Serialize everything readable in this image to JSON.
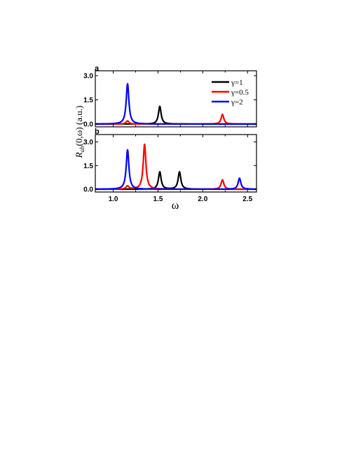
{
  "colors": {
    "gamma1": "#000000",
    "gamma05": "#ff0000",
    "gamma2": "#0000ff",
    "axis": "#000000"
  },
  "chart_data": [
    {
      "panel": "a",
      "type": "line",
      "xlim": [
        0.8,
        2.6
      ],
      "ylim": [
        -0.05,
        3.3
      ],
      "yticks": [
        0.0,
        1.5,
        3.0
      ],
      "ytick_labels": [
        "0.0",
        "1.5",
        "3.0"
      ],
      "legend": "top-right",
      "series": [
        {
          "name": "γ=1",
          "color": "#000000",
          "peaks": [
            {
              "x": 1.52,
              "height": 1.1
            }
          ]
        },
        {
          "name": "γ=0.5",
          "color": "#ff0000",
          "peaks": [
            {
              "x": 1.16,
              "height": 0.2
            },
            {
              "x": 2.22,
              "height": 0.6
            }
          ]
        },
        {
          "name": "γ=2",
          "color": "#0000ff",
          "peaks": [
            {
              "x": 1.16,
              "height": 2.5
            }
          ]
        }
      ]
    },
    {
      "panel": "b",
      "type": "line",
      "xlim": [
        0.8,
        2.6
      ],
      "ylim": [
        -0.05,
        3.3
      ],
      "yticks": [
        0.0,
        1.5,
        3.0
      ],
      "ytick_labels": [
        "0.0",
        "1.5",
        "3.0"
      ],
      "xticks": [
        1.0,
        1.5,
        2.0,
        2.5
      ],
      "xtick_labels": [
        "1.0",
        "1.5",
        "2.0",
        "2.5"
      ],
      "series": [
        {
          "name": "γ=1",
          "color": "#000000",
          "peaks": [
            {
              "x": 1.52,
              "height": 1.1
            },
            {
              "x": 1.74,
              "height": 1.1
            }
          ]
        },
        {
          "name": "γ=0.5",
          "color": "#ff0000",
          "peaks": [
            {
              "x": 1.16,
              "height": 0.2
            },
            {
              "x": 1.35,
              "height": 2.85
            },
            {
              "x": 2.22,
              "height": 0.6
            }
          ]
        },
        {
          "name": "γ=2",
          "color": "#0000ff",
          "peaks": [
            {
              "x": 1.16,
              "height": 2.5
            },
            {
              "x": 2.41,
              "height": 0.7
            }
          ]
        }
      ]
    }
  ],
  "labels": {
    "panel_a": "a",
    "panel_b": "b",
    "xlabel": "ω",
    "ylabel_main": "R",
    "ylabel_sub": "ab",
    "ylabel_rest": "(0,ω) (a.u.)",
    "legend_gamma1": "γ=1",
    "legend_gamma05": "γ=0.5",
    "legend_gamma2": "γ=2"
  }
}
